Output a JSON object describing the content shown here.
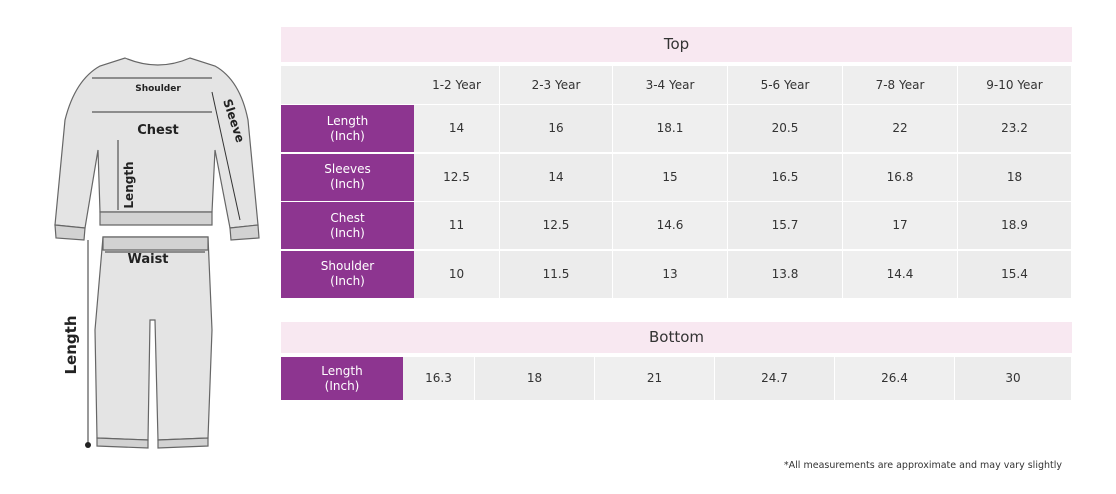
{
  "illustration": {
    "labels": {
      "shoulder": "Shoulder",
      "chest": "Chest",
      "sleeve": "Sleeve",
      "top_length": "Length",
      "waist": "Waist",
      "bottom_length": "Length"
    }
  },
  "top_table": {
    "title": "Top",
    "columns": [
      "1-2 Year",
      "2-3 Year",
      "3-4 Year",
      "5-6 Year",
      "7-8 Year",
      "9-10 Year"
    ],
    "rows": [
      {
        "label": [
          "Length",
          "(Inch)"
        ],
        "values": [
          "14",
          "16",
          "18.1",
          "20.5",
          "22",
          "23.2"
        ]
      },
      {
        "label": [
          "Sleeves",
          "(Inch)"
        ],
        "values": [
          "12.5",
          "14",
          "15",
          "16.5",
          "16.8",
          "18"
        ]
      },
      {
        "label": [
          "Chest",
          "(Inch)"
        ],
        "values": [
          "11",
          "12.5",
          "14.6",
          "15.7",
          "17",
          "18.9"
        ]
      },
      {
        "label": [
          "Shoulder",
          "(Inch)"
        ],
        "values": [
          "10",
          "11.5",
          "13",
          "13.8",
          "14.4",
          "15.4"
        ]
      }
    ]
  },
  "bottom_table": {
    "title": "Bottom",
    "rows": [
      {
        "label": [
          "Length",
          "(Inch)"
        ],
        "values": [
          "16.3",
          "18",
          "21",
          "24.7",
          "26.4",
          "30"
        ]
      }
    ]
  },
  "footnote": "*All measurements are approximate and may vary slightly"
}
